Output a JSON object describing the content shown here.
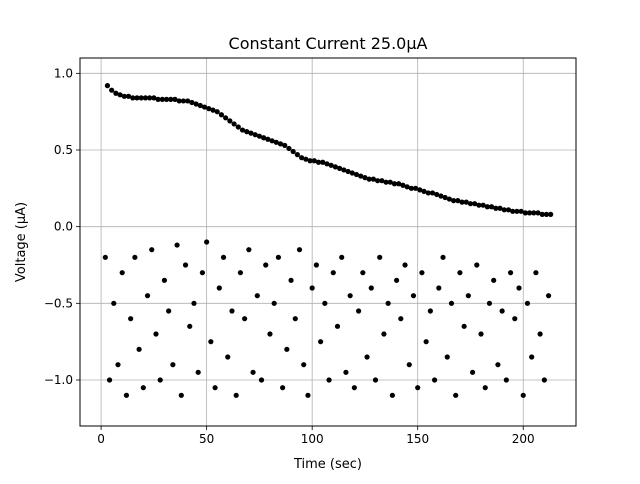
{
  "chart_data": {
    "type": "scatter",
    "title": "Constant Current 25.0μA",
    "xlabel": "Time (sec)",
    "ylabel": "Voltage (μA)",
    "xlim": [
      -10,
      225
    ],
    "ylim": [
      -1.3,
      1.1
    ],
    "xticks": [
      0,
      50,
      100,
      150,
      200
    ],
    "xtick_labels": [
      "0",
      "50",
      "100",
      "150",
      "200"
    ],
    "yticks": [
      -1.0,
      -0.5,
      0.0,
      0.5,
      1.0
    ],
    "ytick_labels": [
      "−1.0",
      "−0.5",
      "0.0",
      "0.5",
      "1.0"
    ],
    "grid": true,
    "marker_color": "#000000",
    "series": [
      {
        "name": "",
        "description_shape": "upper decaying band",
        "x": [
          3,
          5,
          7,
          9,
          11,
          13,
          15,
          17,
          19,
          21,
          23,
          25,
          27,
          29,
          31,
          33,
          35,
          37,
          39,
          41,
          43,
          45,
          47,
          49,
          51,
          53,
          55,
          57,
          59,
          61,
          63,
          65,
          67,
          69,
          71,
          73,
          75,
          77,
          79,
          81,
          83,
          85,
          87,
          89,
          91,
          93,
          95,
          97,
          99,
          101,
          103,
          105,
          107,
          109,
          111,
          113,
          115,
          117,
          119,
          121,
          123,
          125,
          127,
          129,
          131,
          133,
          135,
          137,
          139,
          141,
          143,
          145,
          147,
          149,
          151,
          153,
          155,
          157,
          159,
          161,
          163,
          165,
          167,
          169,
          171,
          173,
          175,
          177,
          179,
          181,
          183,
          185,
          187,
          189,
          191,
          193,
          195,
          197,
          199,
          201,
          203,
          205,
          207,
          209,
          211,
          213
        ],
        "y": [
          0.92,
          0.89,
          0.87,
          0.86,
          0.85,
          0.85,
          0.84,
          0.84,
          0.84,
          0.84,
          0.84,
          0.84,
          0.83,
          0.83,
          0.83,
          0.83,
          0.83,
          0.82,
          0.82,
          0.82,
          0.81,
          0.8,
          0.79,
          0.78,
          0.77,
          0.76,
          0.75,
          0.73,
          0.71,
          0.69,
          0.67,
          0.65,
          0.63,
          0.62,
          0.61,
          0.6,
          0.59,
          0.58,
          0.57,
          0.56,
          0.55,
          0.54,
          0.53,
          0.51,
          0.49,
          0.47,
          0.45,
          0.44,
          0.43,
          0.43,
          0.42,
          0.42,
          0.41,
          0.4,
          0.39,
          0.38,
          0.37,
          0.36,
          0.35,
          0.34,
          0.33,
          0.32,
          0.31,
          0.31,
          0.3,
          0.3,
          0.29,
          0.29,
          0.28,
          0.28,
          0.27,
          0.26,
          0.25,
          0.25,
          0.24,
          0.23,
          0.22,
          0.22,
          0.21,
          0.2,
          0.19,
          0.18,
          0.17,
          0.17,
          0.16,
          0.16,
          0.15,
          0.15,
          0.14,
          0.14,
          0.13,
          0.13,
          0.12,
          0.12,
          0.11,
          0.11,
          0.1,
          0.1,
          0.1,
          0.09,
          0.09,
          0.09,
          0.09,
          0.08,
          0.08,
          0.08
        ]
      },
      {
        "name": "",
        "description_shape": "lower scattered band",
        "x": [
          2,
          4,
          6,
          8,
          10,
          12,
          14,
          16,
          18,
          20,
          22,
          24,
          26,
          28,
          30,
          32,
          34,
          36,
          38,
          40,
          42,
          44,
          46,
          48,
          50,
          52,
          54,
          56,
          58,
          60,
          62,
          64,
          66,
          68,
          70,
          72,
          74,
          76,
          78,
          80,
          82,
          84,
          86,
          88,
          90,
          92,
          94,
          96,
          98,
          100,
          102,
          104,
          106,
          108,
          110,
          112,
          114,
          116,
          118,
          120,
          122,
          124,
          126,
          128,
          130,
          132,
          134,
          136,
          138,
          140,
          142,
          144,
          146,
          148,
          150,
          152,
          154,
          156,
          158,
          160,
          162,
          164,
          166,
          168,
          170,
          172,
          174,
          176,
          178,
          180,
          182,
          184,
          186,
          188,
          190,
          192,
          194,
          196,
          198,
          200,
          202,
          204,
          206,
          208,
          210,
          212
        ],
        "y": [
          -0.2,
          -1.0,
          -0.5,
          -0.9,
          -0.3,
          -1.1,
          -0.6,
          -0.2,
          -0.8,
          -1.05,
          -0.45,
          -0.15,
          -0.7,
          -1.0,
          -0.35,
          -0.55,
          -0.9,
          -0.12,
          -1.1,
          -0.25,
          -0.65,
          -0.5,
          -0.95,
          -0.3,
          -0.1,
          -0.75,
          -1.05,
          -0.4,
          -0.2,
          -0.85,
          -0.55,
          -1.1,
          -0.3,
          -0.6,
          -0.15,
          -0.95,
          -0.45,
          -1.0,
          -0.25,
          -0.7,
          -0.5,
          -0.2,
          -1.05,
          -0.8,
          -0.35,
          -0.6,
          -0.15,
          -0.9,
          -1.1,
          -0.4,
          -0.25,
          -0.75,
          -0.5,
          -1.0,
          -0.3,
          -0.65,
          -0.2,
          -0.95,
          -0.45,
          -1.05,
          -0.55,
          -0.3,
          -0.85,
          -0.4,
          -1.0,
          -0.2,
          -0.7,
          -0.5,
          -1.1,
          -0.35,
          -0.6,
          -0.25,
          -0.9,
          -0.45,
          -1.05,
          -0.3,
          -0.75,
          -0.55,
          -1.0,
          -0.4,
          -0.2,
          -0.85,
          -0.5,
          -1.1,
          -0.3,
          -0.65,
          -0.45,
          -0.95,
          -0.25,
          -0.7,
          -1.05,
          -0.5,
          -0.35,
          -0.9,
          -0.55,
          -1.0,
          -0.3,
          -0.6,
          -0.4,
          -1.1,
          -0.5,
          -0.85,
          -0.3,
          -0.7,
          -1.0,
          -0.45
        ]
      }
    ]
  }
}
